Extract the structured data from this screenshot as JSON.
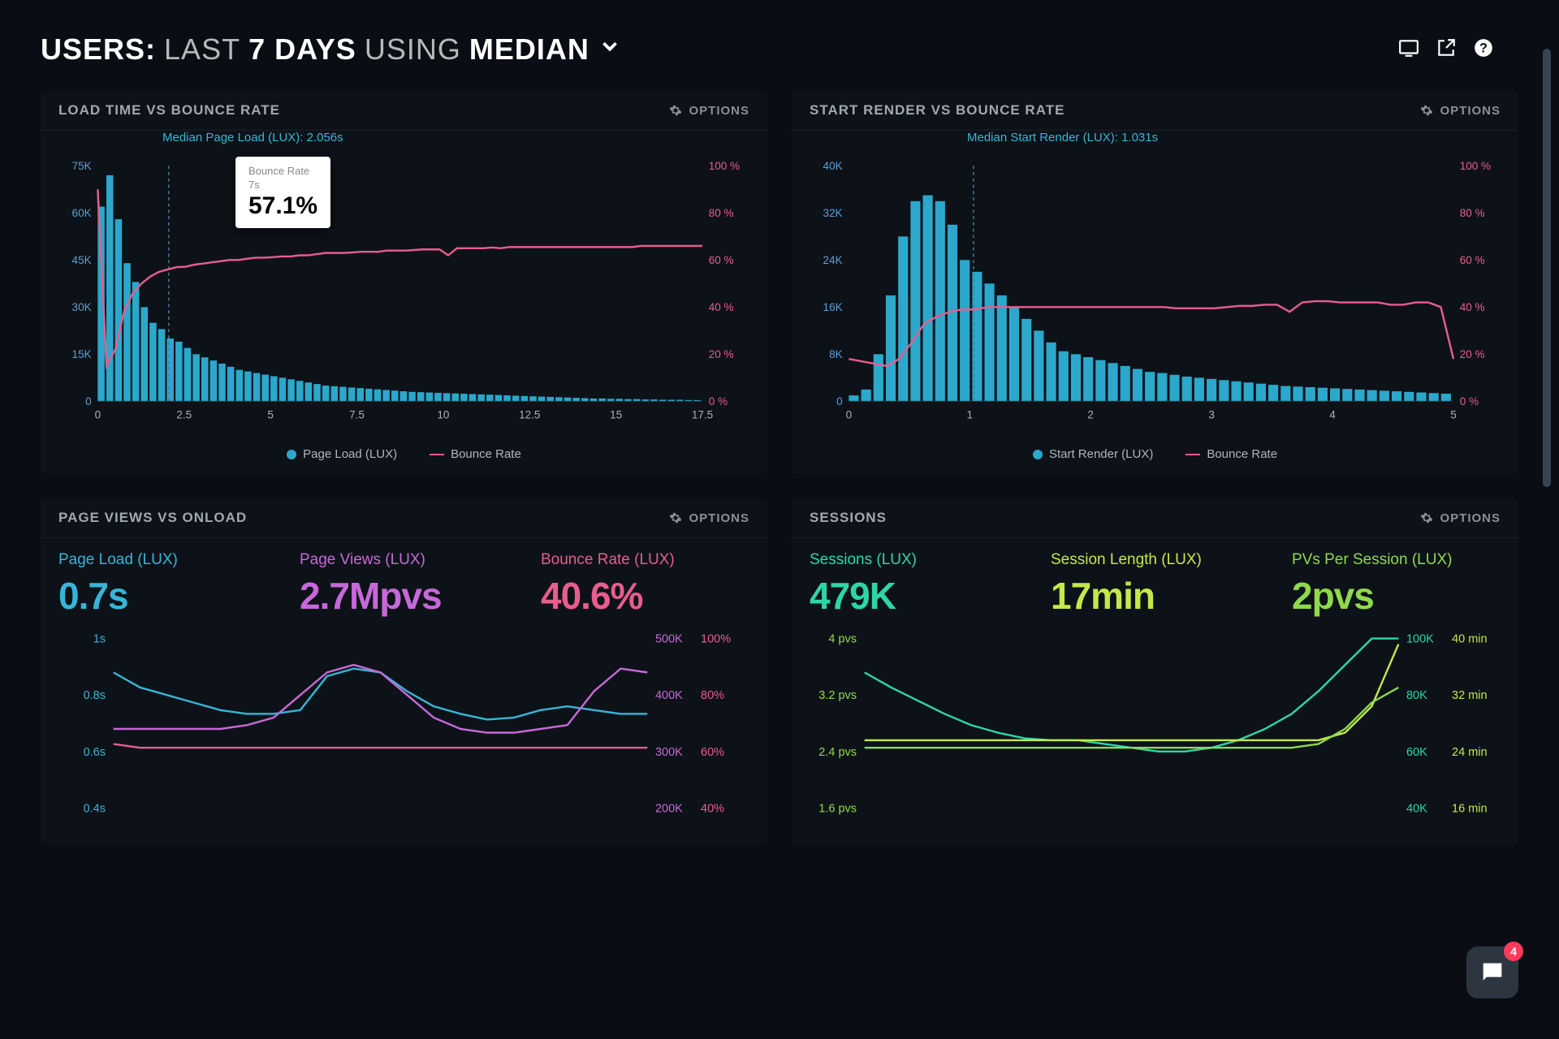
{
  "header": {
    "prefix": "USERS:",
    "word_last": "LAST",
    "word_days": "7 DAYS",
    "word_using": "USING",
    "word_median": "MEDIAN"
  },
  "colors": {
    "blue": "#37b5d8",
    "pink": "#e85d8e",
    "violet": "#c768d8",
    "green": "#8fd94c",
    "teal": "#2dd6a8",
    "lime": "#c3e84a",
    "yellow_green": "#a8d840",
    "bg": "#0a0e14",
    "panel": "#0d1218",
    "text_muted": "#8a9099",
    "bar_fill": "#2ba8cc"
  },
  "panels": {
    "load_time": {
      "title": "LOAD TIME VS BOUNCE RATE",
      "options_label": "OPTIONS",
      "marker_label": "Median Page Load (LUX): 2.056s",
      "marker_x": 2.056,
      "tooltip": {
        "line1": "Bounce Rate",
        "line2": "7s",
        "value": "57.1%"
      },
      "y_left": {
        "max": 75,
        "unit": "K",
        "ticks": [
          0,
          15,
          30,
          45,
          60,
          75
        ],
        "color": "#5b9fd4"
      },
      "y_right": {
        "max": 100,
        "unit": "%",
        "ticks": [
          0,
          20,
          40,
          60,
          80,
          100
        ],
        "color": "#e85d8e"
      },
      "x": {
        "ticks": [
          0,
          2.5,
          5,
          7.5,
          10,
          12.5,
          15,
          17.5
        ]
      },
      "bars": [
        62,
        72,
        58,
        44,
        38,
        30,
        25,
        23,
        20,
        19,
        17,
        15,
        14,
        13,
        12,
        11,
        10,
        9.5,
        9,
        8.5,
        8,
        7.5,
        7,
        6.5,
        6,
        5.5,
        5,
        4.8,
        4.6,
        4.4,
        4.2,
        4,
        3.8,
        3.6,
        3.4,
        3.2,
        3,
        2.9,
        2.8,
        2.7,
        2.6,
        2.5,
        2.4,
        2.3,
        2.2,
        2.1,
        2,
        1.9,
        1.8,
        1.7,
        1.6,
        1.5,
        1.4,
        1.3,
        1.2,
        1.1,
        1,
        0.9,
        0.9,
        0.8,
        0.8,
        0.7,
        0.7,
        0.6,
        0.6,
        0.5,
        0.5,
        0.5,
        0.4,
        0.4
      ],
      "line": [
        90,
        15,
        22,
        38,
        46,
        50,
        53,
        55,
        56,
        57,
        57.1,
        58,
        58.5,
        59,
        59.5,
        60,
        60,
        60.5,
        61,
        61,
        61.2,
        61.5,
        61.5,
        62,
        62,
        62.5,
        63,
        63,
        63,
        63.2,
        63.5,
        63.5,
        63.5,
        64,
        64,
        64,
        64.2,
        64.5,
        64.5,
        64.5,
        62,
        65,
        65,
        65,
        65,
        65.3,
        65,
        65.5,
        65.5,
        65.5,
        65.5,
        65.5,
        65.5,
        65.5,
        65.5,
        65.5,
        65.5,
        65.5,
        65.5,
        65.5,
        65.5,
        65.5,
        66,
        66,
        66,
        66,
        66,
        66,
        66,
        66
      ],
      "legend": [
        {
          "label": "Page Load (LUX)",
          "style": "circle",
          "color": "#2ba8cc"
        },
        {
          "label": "Bounce Rate",
          "style": "line",
          "color": "#e85d8e"
        }
      ]
    },
    "start_render": {
      "title": "START RENDER VS BOUNCE RATE",
      "options_label": "OPTIONS",
      "marker_label": "Median Start Render (LUX): 1.031s",
      "marker_x": 1.031,
      "y_left": {
        "max": 40,
        "unit": "K",
        "ticks": [
          0,
          8,
          16,
          24,
          32,
          40
        ],
        "color": "#5b9fd4"
      },
      "y_right": {
        "max": 100,
        "unit": "%",
        "ticks": [
          0,
          20,
          40,
          60,
          80,
          100
        ],
        "color": "#e85d8e"
      },
      "x": {
        "ticks": [
          0,
          1,
          2,
          3,
          4,
          5
        ]
      },
      "bars": [
        1,
        2,
        8,
        18,
        28,
        34,
        35,
        34,
        30,
        24,
        22,
        20,
        18,
        16,
        14,
        12,
        10,
        8.5,
        8,
        7.5,
        7,
        6.5,
        6,
        5.5,
        5,
        4.8,
        4.5,
        4.2,
        4,
        3.8,
        3.6,
        3.4,
        3.2,
        3,
        2.8,
        2.6,
        2.5,
        2.4,
        2.3,
        2.2,
        2.1,
        2,
        1.9,
        1.8,
        1.7,
        1.6,
        1.5,
        1.4,
        1.3
      ],
      "line": [
        18,
        17,
        16,
        15,
        18,
        25,
        33,
        36,
        38,
        39,
        39,
        40,
        40,
        40,
        40,
        40,
        40,
        40,
        40,
        40,
        40,
        40,
        40,
        40,
        40,
        40,
        39.5,
        39.5,
        39.5,
        39.5,
        40,
        40.5,
        40.5,
        41,
        41,
        38,
        42,
        42.5,
        42.5,
        42,
        42,
        42,
        42,
        41,
        41,
        42,
        42,
        40,
        18
      ],
      "legend": [
        {
          "label": "Start Render (LUX)",
          "style": "circle",
          "color": "#2ba8cc"
        },
        {
          "label": "Bounce Rate",
          "style": "line",
          "color": "#e85d8e"
        }
      ]
    },
    "page_views": {
      "title": "PAGE VIEWS VS ONLOAD",
      "options_label": "OPTIONS",
      "metrics": [
        {
          "label": "Page Load (LUX)",
          "value": "0.7s",
          "color": "#37b5d8"
        },
        {
          "label": "Page Views (LUX)",
          "value": "2.7Mpvs",
          "color": "#c768d8"
        },
        {
          "label": "Bounce Rate (LUX)",
          "value": "40.6%",
          "color": "#e85d8e"
        }
      ],
      "y_left": {
        "ticks": [
          "1s",
          "0.8s",
          "0.6s",
          "0.4s"
        ],
        "color": "#37b5d8"
      },
      "y_right": {
        "ticks": [
          "500K  100%",
          "400K  80%",
          "300K  60%",
          "200K  40%"
        ],
        "color_a": "#c768d8",
        "color_b": "#e85d8e"
      },
      "series": {
        "page_load": [
          0.8,
          0.72,
          0.68,
          0.64,
          0.6,
          0.58,
          0.58,
          0.6,
          0.78,
          0.82,
          0.8,
          0.7,
          0.62,
          0.58,
          0.55,
          0.56,
          0.6,
          0.62,
          0.6,
          0.58,
          0.58
        ],
        "page_views": [
          0.5,
          0.5,
          0.5,
          0.5,
          0.5,
          0.52,
          0.56,
          0.68,
          0.8,
          0.84,
          0.8,
          0.68,
          0.56,
          0.5,
          0.48,
          0.48,
          0.5,
          0.52,
          0.7,
          0.82,
          0.8
        ],
        "bounce": [
          0.42,
          0.4,
          0.4,
          0.4,
          0.4,
          0.4,
          0.4,
          0.4,
          0.4,
          0.4,
          0.4,
          0.4,
          0.4,
          0.4,
          0.4,
          0.4,
          0.4,
          0.4,
          0.4,
          0.4,
          0.4
        ]
      },
      "line_colors": {
        "page_load": "#37b5d8",
        "page_views": "#c768d8",
        "bounce": "#e85d8e"
      }
    },
    "sessions": {
      "title": "SESSIONS",
      "options_label": "OPTIONS",
      "metrics": [
        {
          "label": "Sessions (LUX)",
          "value": "479K",
          "color": "#2dd6a8"
        },
        {
          "label": "Session Length (LUX)",
          "value": "17min",
          "color": "#c3e84a"
        },
        {
          "label": "PVs Per Session (LUX)",
          "value": "2pvs",
          "color": "#8fd94c"
        }
      ],
      "y_left": {
        "ticks": [
          "4 pvs",
          "3.2 pvs",
          "2.4 pvs",
          "1.6 pvs"
        ],
        "color": "#8fd94c"
      },
      "y_right": {
        "ticks": [
          "100K  40 min",
          "80K  32 min",
          "60K  24 min",
          "40K  16 min"
        ],
        "color_a": "#2dd6a8",
        "color_b": "#c3e84a"
      },
      "series": {
        "sessions": [
          0.8,
          0.72,
          0.65,
          0.58,
          0.52,
          0.48,
          0.45,
          0.44,
          0.44,
          0.42,
          0.4,
          0.38,
          0.38,
          0.4,
          0.44,
          0.5,
          0.58,
          0.7,
          0.84,
          0.98,
          0.98
        ],
        "sess_length": [
          0.44,
          0.44,
          0.44,
          0.44,
          0.44,
          0.44,
          0.44,
          0.44,
          0.44,
          0.44,
          0.44,
          0.44,
          0.44,
          0.44,
          0.44,
          0.44,
          0.44,
          0.44,
          0.48,
          0.62,
          0.95
        ],
        "pvs": [
          0.4,
          0.4,
          0.4,
          0.4,
          0.4,
          0.4,
          0.4,
          0.4,
          0.4,
          0.4,
          0.4,
          0.4,
          0.4,
          0.4,
          0.4,
          0.4,
          0.4,
          0.42,
          0.5,
          0.64,
          0.72
        ]
      },
      "line_colors": {
        "sessions": "#2dd6a8",
        "sess_length": "#c3e84a",
        "pvs": "#8fd94c"
      }
    }
  },
  "chat": {
    "notif_count": "4"
  }
}
